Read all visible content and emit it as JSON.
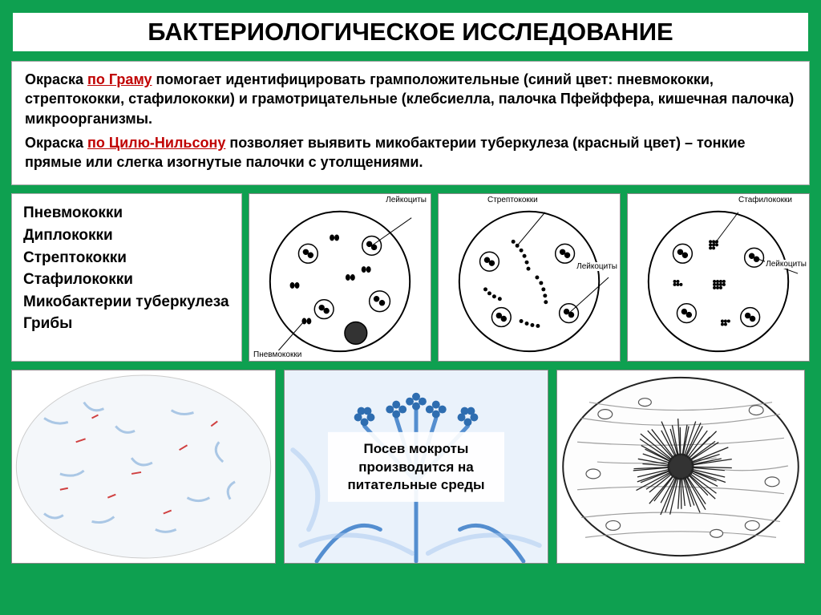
{
  "title": "БАКТЕРИОЛОГИЧЕСКОЕ ИССЛЕДОВАНИЕ",
  "description": {
    "p1_pre": "Окраска ",
    "p1_u": "по Граму",
    "p1_post": " помогает идентифицировать грамположительные (синий цвет: пневмококки, стрептококки, стафилококки) и грамотрицательные (клебсиелла, палочка Пфейффера, кишечная палочка) микроорганизмы.",
    "p2_pre": "Окраска ",
    "p2_u": "по Цилю-Нильсону",
    "p2_post": " позволяет выявить микобактерии туберкулеза (красный цвет) – тонкие прямые или слегка изогнутые палочки с утолщениями."
  },
  "organism_list": [
    "Пневмококки",
    "Диплококки",
    "Стрептококки",
    "Стафилококки",
    "Микобактерии туберкулеза",
    "Грибы"
  ],
  "microscopy_labels": {
    "d1_top": "Лейкоциты",
    "d1_bottom": "Пневмококки",
    "d2_top": "Стрептококки",
    "d2_right": "Лейкоциты",
    "d3_top": "Стафилококки",
    "d3_right": "Лейкоциты"
  },
  "culture_text": "Посев мокроты производится на питательные среды",
  "colors": {
    "bg": "#0ea050",
    "panel_bg": "#ffffff",
    "accent_red": "#c00000",
    "smear_blue": "#5a9bd5",
    "smear_red": "#d04040",
    "hyphae_blue": "#3a7dc8",
    "hyphae_light": "#a8c8f0"
  }
}
